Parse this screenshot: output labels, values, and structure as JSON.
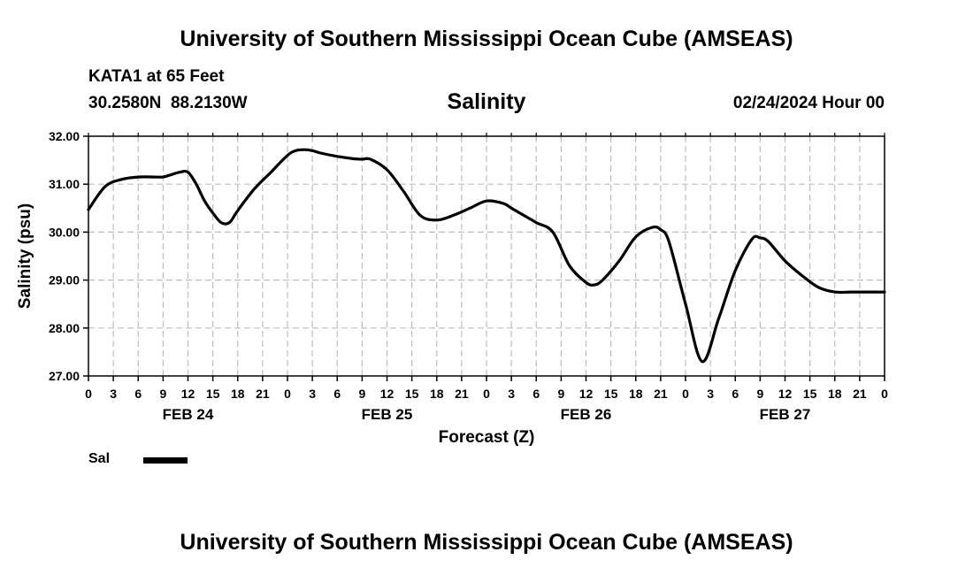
{
  "title_top": "University of Southern Mississippi Ocean Cube (AMSEAS)",
  "title_bottom": "University of Southern Mississippi Ocean Cube (AMSEAS)",
  "station": "KATA1 at 65 Feet",
  "coords": "30.2580N  88.2130W",
  "parameter": "Salinity",
  "date": "02/24/2024 Hour 00",
  "chart_data": {
    "type": "line",
    "title": "Salinity",
    "xlabel": "Forecast (Z)",
    "ylabel": "Salinity (psu)",
    "ylim": [
      27.0,
      32.0
    ],
    "xlim": [
      0,
      96
    ],
    "grid": true,
    "yticks": [
      "27.00",
      "28.00",
      "29.00",
      "30.00",
      "31.00",
      "32.00"
    ],
    "xtick_labels": [
      "0",
      "3",
      "6",
      "9",
      "12",
      "15",
      "18",
      "21",
      "0",
      "3",
      "6",
      "9",
      "12",
      "15",
      "18",
      "21",
      "0",
      "3",
      "6",
      "9",
      "12",
      "15",
      "18",
      "21",
      "0",
      "3",
      "6",
      "9",
      "12",
      "15",
      "18",
      "21",
      "0"
    ],
    "day_labels": [
      "FEB 24",
      "FEB 25",
      "FEB 26",
      "FEB 27"
    ],
    "legend": [
      "Sal"
    ],
    "series": [
      {
        "name": "Sal",
        "x": [
          0,
          2,
          4,
          6,
          8,
          9,
          10,
          11,
          12,
          13,
          14,
          15,
          16,
          17,
          18,
          20,
          22,
          24,
          25,
          26,
          27,
          28,
          30,
          32,
          33,
          34,
          36,
          38,
          40,
          42,
          44,
          46,
          48,
          50,
          51,
          52,
          54,
          56,
          58,
          60,
          61,
          62,
          64,
          66,
          68,
          69,
          70,
          72,
          74,
          76,
          78,
          80,
          81,
          82,
          84,
          86,
          88,
          90,
          92,
          94,
          96
        ],
        "y": [
          30.47,
          30.95,
          31.1,
          31.15,
          31.15,
          31.15,
          31.2,
          31.25,
          31.25,
          31.0,
          30.65,
          30.4,
          30.2,
          30.2,
          30.45,
          30.9,
          31.25,
          31.6,
          31.7,
          31.72,
          31.7,
          31.65,
          31.58,
          31.53,
          31.52,
          31.52,
          31.3,
          30.85,
          30.35,
          30.25,
          30.35,
          30.5,
          30.65,
          30.6,
          30.5,
          30.4,
          30.2,
          30.0,
          29.3,
          28.95,
          28.9,
          29.0,
          29.4,
          29.9,
          30.1,
          30.05,
          29.8,
          28.5,
          27.3,
          28.2,
          29.2,
          29.85,
          29.88,
          29.8,
          29.4,
          29.1,
          28.85,
          28.75,
          28.75,
          28.75,
          28.75
        ]
      }
    ]
  }
}
